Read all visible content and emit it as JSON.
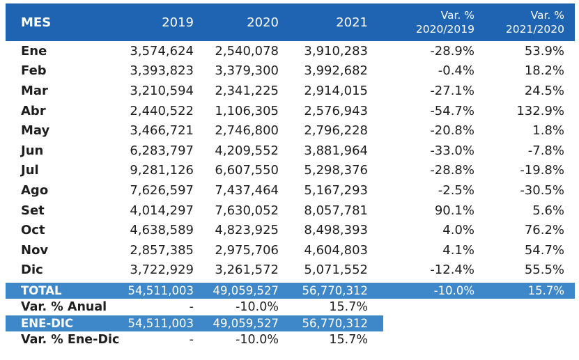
{
  "colors": {
    "header_bg": "#1E64B2",
    "band_bg": "#3E87C8",
    "text": "#1E1E1E",
    "band_text": "#FFFFFF"
  },
  "chart_data": {
    "type": "table",
    "header": {
      "mes": "MES",
      "y2019": "2019",
      "y2020": "2020",
      "y2021": "2021",
      "var1_line1": "Var. %",
      "var1_line2": "2020/2019",
      "var2_line1": "Var. %",
      "var2_line2": "2021/2020"
    },
    "rows": [
      {
        "mes": "Ene",
        "y2019": "3,574,624",
        "y2020": "2,540,078",
        "y2021": "3,910,283",
        "var1": "-28.9%",
        "var2": "53.9%"
      },
      {
        "mes": "Feb",
        "y2019": "3,393,823",
        "y2020": "3,379,300",
        "y2021": "3,992,682",
        "var1": "-0.4%",
        "var2": "18.2%"
      },
      {
        "mes": "Mar",
        "y2019": "3,210,594",
        "y2020": "2,341,225",
        "y2021": "2,914,015",
        "var1": "-27.1%",
        "var2": "24.5%"
      },
      {
        "mes": "Abr",
        "y2019": "2,440,522",
        "y2020": "1,106,305",
        "y2021": "2,576,943",
        "var1": "-54.7%",
        "var2": "132.9%"
      },
      {
        "mes": "May",
        "y2019": "3,466,721",
        "y2020": "2,746,800",
        "y2021": "2,796,228",
        "var1": "-20.8%",
        "var2": "1.8%"
      },
      {
        "mes": "Jun",
        "y2019": "6,283,797",
        "y2020": "4,209,552",
        "y2021": "3,881,964",
        "var1": "-33.0%",
        "var2": "-7.8%"
      },
      {
        "mes": "Jul",
        "y2019": "9,281,126",
        "y2020": "6,607,550",
        "y2021": "5,298,376",
        "var1": "-28.8%",
        "var2": "-19.8%"
      },
      {
        "mes": "Ago",
        "y2019": "7,626,597",
        "y2020": "7,437,464",
        "y2021": "5,167,293",
        "var1": "-2.5%",
        "var2": "-30.5%"
      },
      {
        "mes": "Set",
        "y2019": "4,014,297",
        "y2020": "7,630,052",
        "y2021": "8,057,781",
        "var1": "90.1%",
        "var2": "5.6%"
      },
      {
        "mes": "Oct",
        "y2019": "4,638,589",
        "y2020": "4,823,925",
        "y2021": "8,498,393",
        "var1": "4.0%",
        "var2": "76.2%"
      },
      {
        "mes": "Nov",
        "y2019": "2,857,385",
        "y2020": "2,975,706",
        "y2021": "4,604,803",
        "var1": "4.1%",
        "var2": "54.7%"
      },
      {
        "mes": "Dic",
        "y2019": "3,722,929",
        "y2020": "3,261,572",
        "y2021": "5,071,552",
        "var1": "-12.4%",
        "var2": "55.5%"
      }
    ],
    "footer": {
      "total": {
        "label": "TOTAL",
        "y2019": "54,511,003",
        "y2020": "49,059,527",
        "y2021": "56,770,312",
        "var1": "-10.0%",
        "var2": "15.7%"
      },
      "var_anual": {
        "label": "Var. % Anual",
        "y2019": "-",
        "y2020": "-10.0%",
        "y2021": "15.7%"
      },
      "ene_dic": {
        "label": "ENE-DIC",
        "y2019": "54,511,003",
        "y2020": "49,059,527",
        "y2021": "56,770,312"
      },
      "var_ene_dic": {
        "label": "Var. % Ene-Dic",
        "y2019": "-",
        "y2020": "-10.0%",
        "y2021": "15.7%"
      }
    }
  }
}
